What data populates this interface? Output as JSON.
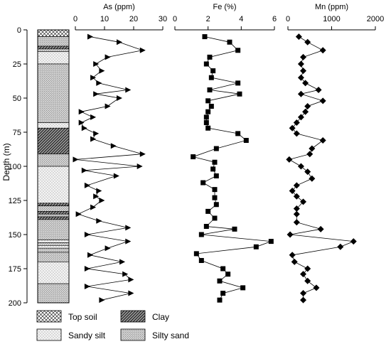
{
  "chart_data": {
    "type": "line",
    "ylabel": "Depth (m)",
    "ylim": [
      0,
      200
    ],
    "yticks": [
      0,
      25,
      50,
      75,
      100,
      125,
      150,
      175,
      200
    ],
    "y_reversed": true,
    "panels": [
      {
        "id": "as",
        "xlabel": "As (ppm)",
        "xlim": [
          0,
          30
        ],
        "xticks": [
          0,
          10,
          20,
          30
        ],
        "marker": "triangle-right",
        "points": [
          {
            "x": 5,
            "depth": 5
          },
          {
            "x": 15,
            "depth": 9
          },
          {
            "x": 23,
            "depth": 15
          },
          {
            "x": 11,
            "depth": 20
          },
          {
            "x": 7,
            "depth": 25
          },
          {
            "x": 9,
            "depth": 30
          },
          {
            "x": 6,
            "depth": 35
          },
          {
            "x": 8,
            "depth": 39
          },
          {
            "x": 18,
            "depth": 44
          },
          {
            "x": 7,
            "depth": 47
          },
          {
            "x": 15,
            "depth": 50
          },
          {
            "x": 11,
            "depth": 56
          },
          {
            "x": 2,
            "depth": 60
          },
          {
            "x": 6,
            "depth": 64
          },
          {
            "x": 2,
            "depth": 68
          },
          {
            "x": 3,
            "depth": 72
          },
          {
            "x": 7,
            "depth": 76
          },
          {
            "x": 6,
            "depth": 80
          },
          {
            "x": 13,
            "depth": 85
          },
          {
            "x": 23,
            "depth": 91
          },
          {
            "x": 0,
            "depth": 95
          },
          {
            "x": 22,
            "depth": 100
          },
          {
            "x": 3,
            "depth": 103
          },
          {
            "x": 14,
            "depth": 107
          },
          {
            "x": 4,
            "depth": 114
          },
          {
            "x": 8,
            "depth": 118
          },
          {
            "x": 7,
            "depth": 122
          },
          {
            "x": 9,
            "depth": 125
          },
          {
            "x": 6,
            "depth": 130
          },
          {
            "x": 1,
            "depth": 135
          },
          {
            "x": 8,
            "depth": 140
          },
          {
            "x": 18,
            "depth": 145
          },
          {
            "x": 4,
            "depth": 150
          },
          {
            "x": 18,
            "depth": 155
          },
          {
            "x": 11,
            "depth": 160
          },
          {
            "x": 5,
            "depth": 165
          },
          {
            "x": 16,
            "depth": 170
          },
          {
            "x": 4,
            "depth": 175
          },
          {
            "x": 17,
            "depth": 179
          },
          {
            "x": 19,
            "depth": 183
          },
          {
            "x": 4,
            "depth": 188
          },
          {
            "x": 19,
            "depth": 193
          },
          {
            "x": 9,
            "depth": 198
          }
        ]
      },
      {
        "id": "fe",
        "xlabel": "Fe (%)",
        "xlim": [
          0,
          6
        ],
        "xticks": [
          0,
          2,
          4,
          6
        ],
        "marker": "square",
        "points": [
          {
            "x": 1.8,
            "depth": 5
          },
          {
            "x": 3.3,
            "depth": 9
          },
          {
            "x": 3.8,
            "depth": 15
          },
          {
            "x": 2.1,
            "depth": 20
          },
          {
            "x": 1.9,
            "depth": 25
          },
          {
            "x": 2.3,
            "depth": 30
          },
          {
            "x": 2.2,
            "depth": 35
          },
          {
            "x": 3.8,
            "depth": 39
          },
          {
            "x": 2.1,
            "depth": 44
          },
          {
            "x": 3.9,
            "depth": 47
          },
          {
            "x": 2.0,
            "depth": 52
          },
          {
            "x": 2.2,
            "depth": 56
          },
          {
            "x": 2.0,
            "depth": 60
          },
          {
            "x": 1.9,
            "depth": 64
          },
          {
            "x": 1.9,
            "depth": 68
          },
          {
            "x": 2.0,
            "depth": 72
          },
          {
            "x": 3.8,
            "depth": 76
          },
          {
            "x": 4.3,
            "depth": 81
          },
          {
            "x": 2.5,
            "depth": 87
          },
          {
            "x": 1.1,
            "depth": 93
          },
          {
            "x": 2.4,
            "depth": 97
          },
          {
            "x": 2.3,
            "depth": 102
          },
          {
            "x": 2.5,
            "depth": 107
          },
          {
            "x": 1.7,
            "depth": 112
          },
          {
            "x": 2.4,
            "depth": 117
          },
          {
            "x": 2.4,
            "depth": 123
          },
          {
            "x": 2.5,
            "depth": 128
          },
          {
            "x": 2.0,
            "depth": 133
          },
          {
            "x": 2.4,
            "depth": 138
          },
          {
            "x": 1.9,
            "depth": 144
          },
          {
            "x": 3.6,
            "depth": 146
          },
          {
            "x": 1.6,
            "depth": 150
          },
          {
            "x": 5.8,
            "depth": 155
          },
          {
            "x": 4.9,
            "depth": 159
          },
          {
            "x": 1.3,
            "depth": 164
          },
          {
            "x": 1.6,
            "depth": 169
          },
          {
            "x": 2.9,
            "depth": 175
          },
          {
            "x": 3.2,
            "depth": 179
          },
          {
            "x": 2.7,
            "depth": 184
          },
          {
            "x": 4.1,
            "depth": 189
          },
          {
            "x": 2.9,
            "depth": 193
          },
          {
            "x": 2.7,
            "depth": 198
          }
        ]
      },
      {
        "id": "mn",
        "xlabel": "Mn (ppm)",
        "xlim": [
          0,
          2000
        ],
        "xticks": [
          0,
          1000,
          2000
        ],
        "marker": "diamond",
        "points": [
          {
            "x": 250,
            "depth": 5
          },
          {
            "x": 450,
            "depth": 9
          },
          {
            "x": 800,
            "depth": 15
          },
          {
            "x": 350,
            "depth": 20
          },
          {
            "x": 300,
            "depth": 25
          },
          {
            "x": 350,
            "depth": 30
          },
          {
            "x": 300,
            "depth": 35
          },
          {
            "x": 400,
            "depth": 39
          },
          {
            "x": 700,
            "depth": 44
          },
          {
            "x": 300,
            "depth": 47
          },
          {
            "x": 800,
            "depth": 52
          },
          {
            "x": 450,
            "depth": 56
          },
          {
            "x": 400,
            "depth": 60
          },
          {
            "x": 300,
            "depth": 64
          },
          {
            "x": 200,
            "depth": 68
          },
          {
            "x": 100,
            "depth": 72
          },
          {
            "x": 200,
            "depth": 76
          },
          {
            "x": 800,
            "depth": 81
          },
          {
            "x": 550,
            "depth": 87
          },
          {
            "x": 500,
            "depth": 91
          },
          {
            "x": 30,
            "depth": 95
          },
          {
            "x": 300,
            "depth": 100
          },
          {
            "x": 450,
            "depth": 104
          },
          {
            "x": 550,
            "depth": 109
          },
          {
            "x": 200,
            "depth": 114
          },
          {
            "x": 100,
            "depth": 118
          },
          {
            "x": 200,
            "depth": 122
          },
          {
            "x": 350,
            "depth": 126
          },
          {
            "x": 200,
            "depth": 131
          },
          {
            "x": 200,
            "depth": 135
          },
          {
            "x": 200,
            "depth": 141
          },
          {
            "x": 750,
            "depth": 146
          },
          {
            "x": 50,
            "depth": 150
          },
          {
            "x": 1500,
            "depth": 155
          },
          {
            "x": 1200,
            "depth": 159
          },
          {
            "x": 100,
            "depth": 165
          },
          {
            "x": 150,
            "depth": 170
          },
          {
            "x": 450,
            "depth": 175
          },
          {
            "x": 350,
            "depth": 179
          },
          {
            "x": 450,
            "depth": 184
          },
          {
            "x": 650,
            "depth": 189
          },
          {
            "x": 350,
            "depth": 193
          },
          {
            "x": 350,
            "depth": 198
          }
        ]
      }
    ],
    "lithology": [
      {
        "top": 0,
        "bottom": 5,
        "type": "topsoil"
      },
      {
        "top": 5,
        "bottom": 12,
        "type": "silty_sand"
      },
      {
        "top": 12,
        "bottom": 14,
        "type": "clay"
      },
      {
        "top": 14,
        "bottom": 16,
        "type": "silty_sand"
      },
      {
        "top": 16,
        "bottom": 25,
        "type": "sandy_silt"
      },
      {
        "top": 25,
        "bottom": 68,
        "type": "silty_sand"
      },
      {
        "top": 68,
        "bottom": 72,
        "type": "sandy_silt"
      },
      {
        "top": 72,
        "bottom": 91,
        "type": "clay"
      },
      {
        "top": 91,
        "bottom": 100,
        "type": "silty_sand"
      },
      {
        "top": 100,
        "bottom": 127,
        "type": "sandy_silt"
      },
      {
        "top": 127,
        "bottom": 129,
        "type": "clay"
      },
      {
        "top": 129,
        "bottom": 133,
        "type": "silty_sand"
      },
      {
        "top": 133,
        "bottom": 135,
        "type": "clay"
      },
      {
        "top": 135,
        "bottom": 137,
        "type": "silty_sand"
      },
      {
        "top": 137,
        "bottom": 139,
        "type": "clay"
      },
      {
        "top": 139,
        "bottom": 154,
        "type": "silty_sand"
      },
      {
        "top": 154,
        "bottom": 156,
        "type": "sandy_silt"
      },
      {
        "top": 156,
        "bottom": 158,
        "type": "silty_sand"
      },
      {
        "top": 158,
        "bottom": 160,
        "type": "sandy_silt"
      },
      {
        "top": 160,
        "bottom": 163,
        "type": "silty_sand"
      },
      {
        "top": 163,
        "bottom": 170,
        "type": "silty_sand"
      },
      {
        "top": 170,
        "bottom": 186,
        "type": "sandy_silt"
      },
      {
        "top": 186,
        "bottom": 200,
        "type": "silty_sand"
      }
    ],
    "legend": {
      "placement": "bottom-left",
      "entries": [
        {
          "type": "topsoil",
          "label": "Top soil"
        },
        {
          "type": "clay",
          "label": "Clay"
        },
        {
          "type": "sandy_silt",
          "label": "Sandy silt"
        },
        {
          "type": "silty_sand",
          "label": "Silty sand"
        }
      ]
    }
  }
}
